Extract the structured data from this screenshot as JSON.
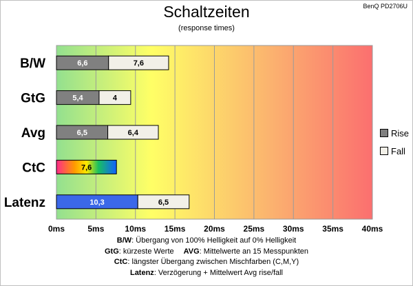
{
  "header": {
    "title": "Schaltzeiten",
    "subtitle": "(response times)",
    "model": "BenQ PD2706U"
  },
  "chart_data": {
    "type": "bar",
    "orientation": "horizontal",
    "stacked": true,
    "categories": [
      "B/W",
      "GtG",
      "Avg",
      "CtC",
      "Latenz"
    ],
    "series": [
      {
        "name": "Rise",
        "values": [
          6.6,
          5.4,
          6.5,
          7.6,
          10.3
        ],
        "labels": [
          "6,6",
          "5,4",
          "6,5",
          "7,6",
          "10,3"
        ]
      },
      {
        "name": "Fall",
        "values": [
          7.6,
          4,
          6.4,
          null,
          6.5
        ],
        "labels": [
          "7,6",
          "4",
          "6,4",
          "",
          "6,5"
        ]
      }
    ],
    "xlim": [
      0,
      40
    ],
    "xticks": [
      0,
      5,
      10,
      15,
      20,
      25,
      30,
      35,
      40
    ],
    "xtick_labels": [
      "0ms",
      "5ms",
      "10ms",
      "15ms",
      "20ms",
      "25ms",
      "30ms",
      "35ms",
      "40ms"
    ],
    "grid": true,
    "legend_position": "right",
    "colors": {
      "rise": "#808080",
      "fall": "#f2f0e8",
      "latenz_rise": "#3b68e8",
      "background_gradient": [
        "#93e08f",
        "#ffff66",
        "#fbb26f",
        "#fb6f6f"
      ]
    }
  },
  "notes": [
    {
      "key": "B/W",
      "text": ":  Übergang von 100% Helligkeit auf 0% Helligkeit"
    },
    {
      "key": "GtG",
      "text": ": kürzeste  Werte",
      "key2": "AVG",
      "text2": ": Mittelwerte  an 15 Messpunkten"
    },
    {
      "key": "CtC",
      "text": ": längster Übergang  zwischen Mischfarben (C,M,Y)"
    },
    {
      "key": "Latenz",
      "text": ": Verzögerung  + Mittelwert  Avg rise/fall"
    }
  ]
}
